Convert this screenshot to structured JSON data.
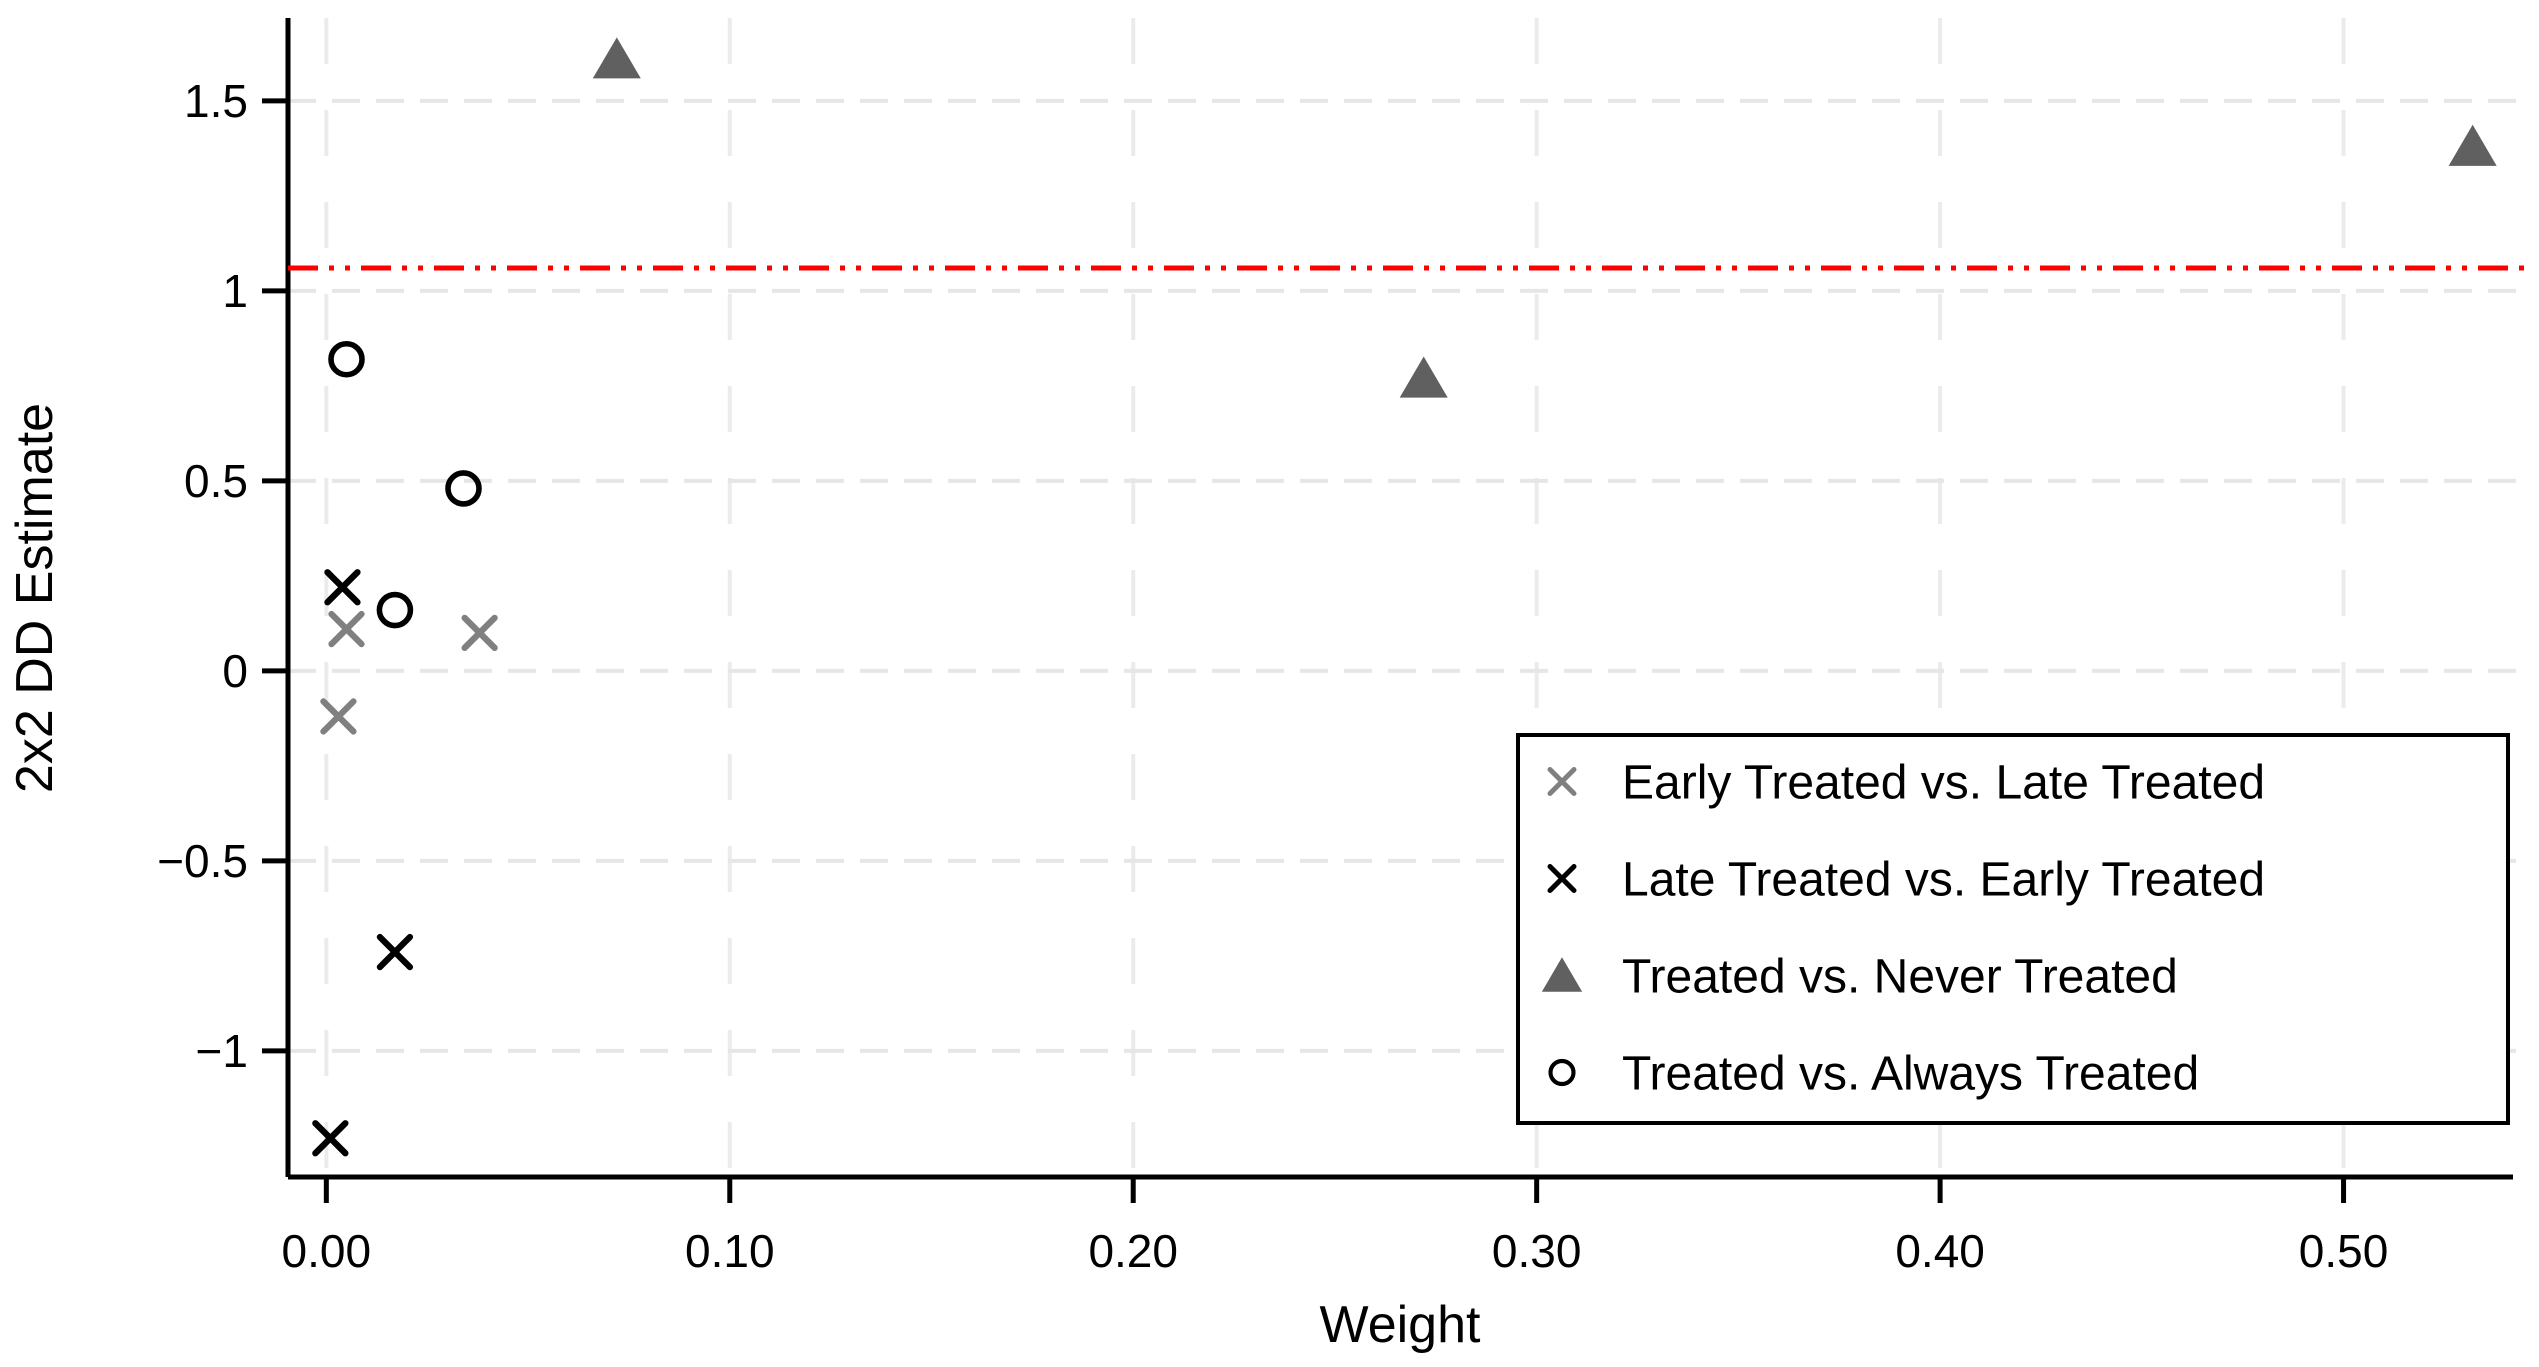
{
  "figure": {
    "background": "#ffffff"
  },
  "chart_data": {
    "type": "scatter",
    "title": "",
    "xlabel": "Weight",
    "ylabel": "2x2 DD Estimate",
    "xlim": [
      -0.0095,
      0.542
    ],
    "ylim": [
      -1.332,
      1.718
    ],
    "grid": true,
    "legend_position": "bottom-right",
    "x_ticks": [
      {
        "v": 0.0,
        "label": "0.00"
      },
      {
        "v": 0.1,
        "label": "0.10"
      },
      {
        "v": 0.2,
        "label": "0.20"
      },
      {
        "v": 0.3,
        "label": "0.30"
      },
      {
        "v": 0.4,
        "label": "0.40"
      },
      {
        "v": 0.5,
        "label": "0.50"
      }
    ],
    "y_ticks": [
      {
        "v": 1.5,
        "label": "1.5"
      },
      {
        "v": 1.0,
        "label": "1"
      },
      {
        "v": 0.5,
        "label": "0.5"
      },
      {
        "v": 0.0,
        "label": "0"
      },
      {
        "v": -0.5,
        "label": "−0.5"
      },
      {
        "v": -1.0,
        "label": "−1"
      }
    ],
    "reference_line": {
      "y": 1.06,
      "color": "#ff0000",
      "style": "dash-dot-dot"
    },
    "series": [
      {
        "name": "Early Treated vs. Late Treated",
        "marker": "x",
        "color": "#808080",
        "points": [
          [
            0.005,
            0.11
          ],
          [
            0.038,
            0.1
          ],
          [
            0.003,
            -0.12
          ]
        ]
      },
      {
        "name": "Late Treated vs. Early Treated",
        "marker": "x",
        "color": "#000000",
        "points": [
          [
            0.004,
            0.22
          ],
          [
            0.017,
            -0.74
          ],
          [
            0.001,
            -1.23
          ]
        ]
      },
      {
        "name": "Treated vs. Never Treated",
        "marker": "triangle",
        "color": "#606060",
        "points": [
          [
            0.072,
            1.61
          ],
          [
            0.272,
            0.77
          ],
          [
            0.532,
            1.38
          ]
        ]
      },
      {
        "name": "Treated vs. Always Treated",
        "marker": "circle-open",
        "color": "#000000",
        "points": [
          [
            0.005,
            0.82
          ],
          [
            0.034,
            0.48
          ],
          [
            0.017,
            0.16
          ]
        ]
      }
    ],
    "style": {
      "axis_color": "#000000",
      "grid_color_h": "#e6e6e6",
      "grid_color_v": "#ebebeb",
      "legend_border_color": "#000000",
      "legend_background": "#ffffff"
    }
  }
}
